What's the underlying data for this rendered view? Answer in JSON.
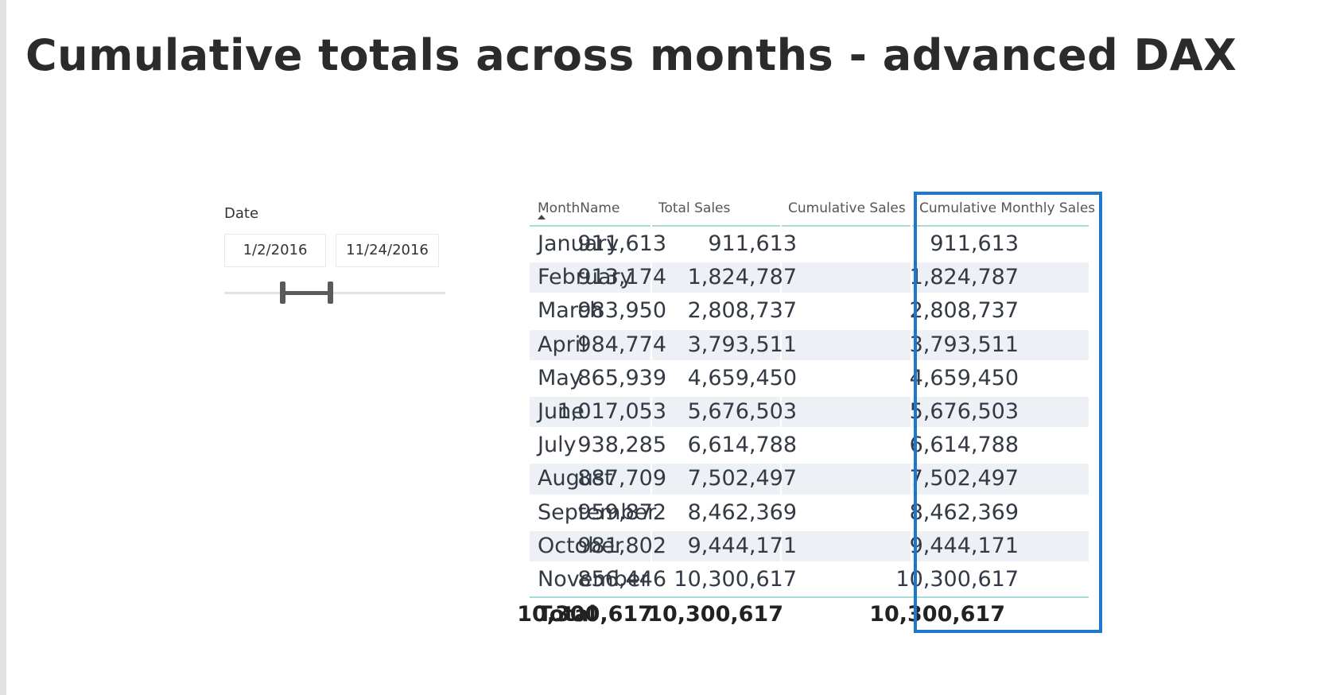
{
  "title": "Cumulative totals across months - advanced DAX",
  "slicer": {
    "label": "Date",
    "start_date": "1/2/2016",
    "end_date": "11/24/2016"
  },
  "table": {
    "headers": {
      "month": "MonthName",
      "total": "Total Sales",
      "cumulative": "Cumulative Sales",
      "cumulative_monthly": "Cumulative Monthly Sales"
    },
    "rows": [
      {
        "month": "January",
        "total": "911,613",
        "cumulative": "911,613",
        "cumulative_monthly": "911,613"
      },
      {
        "month": "February",
        "total": "913,174",
        "cumulative": "1,824,787",
        "cumulative_monthly": "1,824,787"
      },
      {
        "month": "March",
        "total": "983,950",
        "cumulative": "2,808,737",
        "cumulative_monthly": "2,808,737"
      },
      {
        "month": "April",
        "total": "984,774",
        "cumulative": "3,793,511",
        "cumulative_monthly": "3,793,511"
      },
      {
        "month": "May",
        "total": "865,939",
        "cumulative": "4,659,450",
        "cumulative_monthly": "4,659,450"
      },
      {
        "month": "June",
        "total": "1,017,053",
        "cumulative": "5,676,503",
        "cumulative_monthly": "5,676,503"
      },
      {
        "month": "July",
        "total": "938,285",
        "cumulative": "6,614,788",
        "cumulative_monthly": "6,614,788"
      },
      {
        "month": "August",
        "total": "887,709",
        "cumulative": "7,502,497",
        "cumulative_monthly": "7,502,497"
      },
      {
        "month": "September",
        "total": "959,872",
        "cumulative": "8,462,369",
        "cumulative_monthly": "8,462,369"
      },
      {
        "month": "October",
        "total": "981,802",
        "cumulative": "9,444,171",
        "cumulative_monthly": "9,444,171"
      },
      {
        "month": "November",
        "total": "856,446",
        "cumulative": "10,300,617",
        "cumulative_monthly": "10,300,617"
      }
    ],
    "total_row": {
      "label": "Total",
      "total": "10,300,617",
      "cumulative": "10,300,617",
      "cumulative_monthly": "10,300,617"
    }
  },
  "colors": {
    "highlight": "#1f76cf",
    "header_rule": "#a9dcd8",
    "alt_row": "#edf0f5"
  }
}
